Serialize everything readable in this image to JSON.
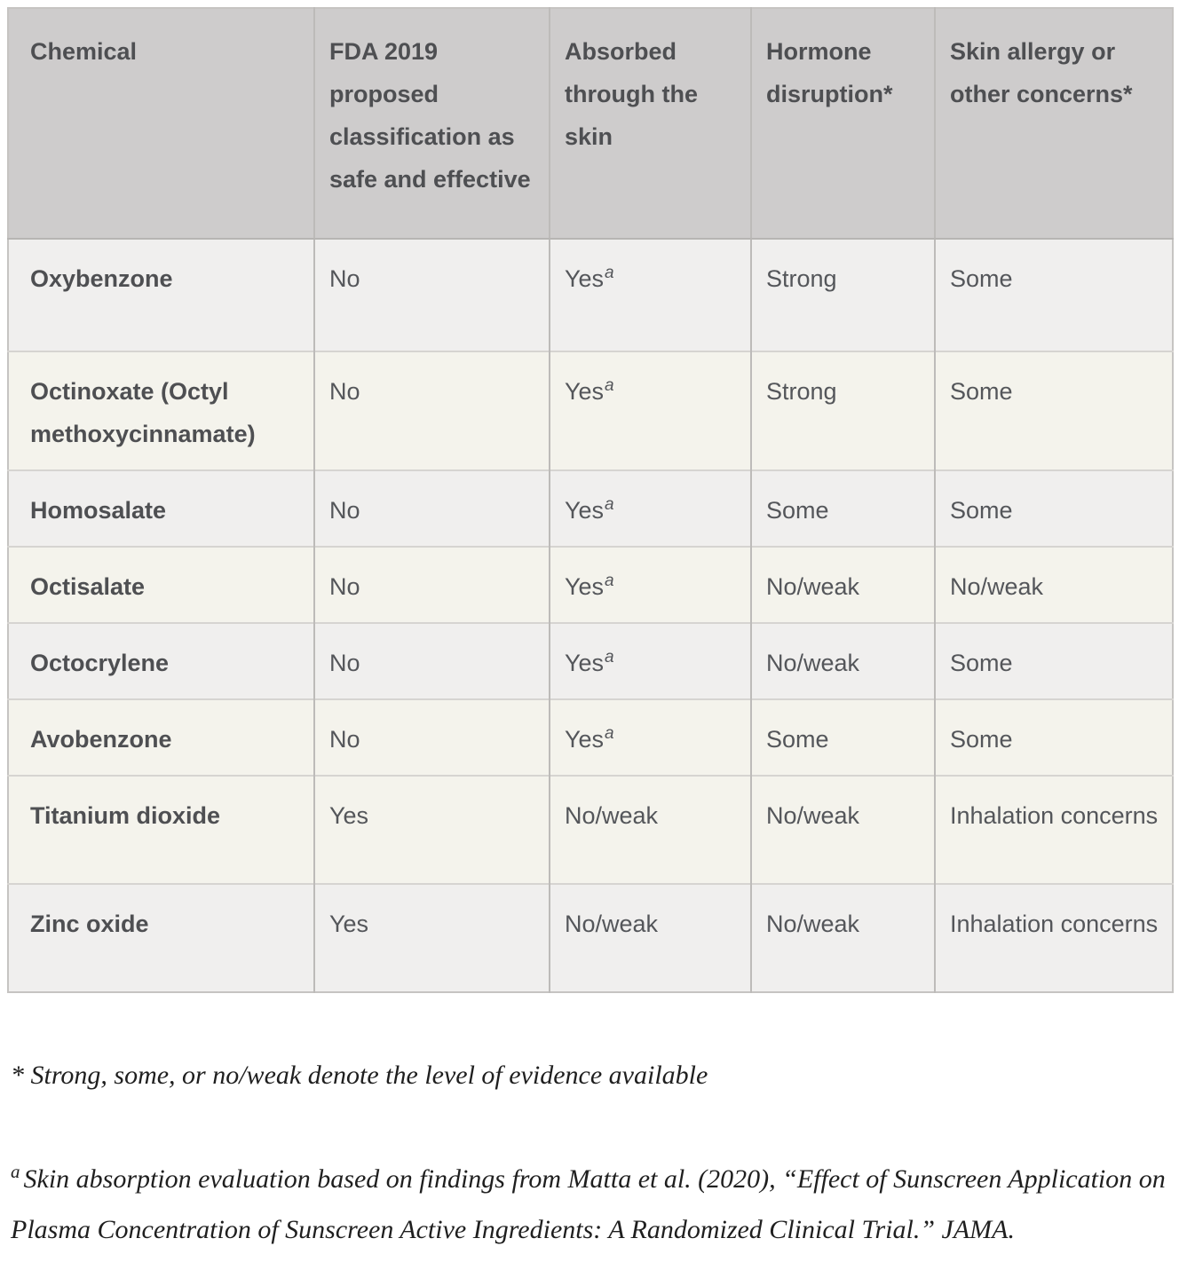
{
  "table": {
    "columns": [
      "Chemical",
      "FDA 2019 proposed classification as safe and effective",
      "Absorbed through the skin",
      "Hormone disruption*",
      "Skin allergy or other concerns*"
    ],
    "rows": [
      {
        "chemical": "Oxybenzone",
        "shade": "gray",
        "cells": [
          {
            "text": "No"
          },
          {
            "text": "Yes",
            "sup": "a"
          },
          {
            "text": "Strong"
          },
          {
            "text": "Some"
          }
        ]
      },
      {
        "chemical": "Octinoxate (Octyl methoxycinnamate)",
        "shade": "ivory",
        "cells": [
          {
            "text": "No"
          },
          {
            "text": "Yes",
            "sup": "a"
          },
          {
            "text": "Strong"
          },
          {
            "text": "Some"
          }
        ]
      },
      {
        "chemical": "Homosalate",
        "shade": "gray",
        "cells": [
          {
            "text": "No"
          },
          {
            "text": "Yes",
            "sup": "a"
          },
          {
            "text": "Some"
          },
          {
            "text": "Some"
          }
        ]
      },
      {
        "chemical": "Octisalate",
        "shade": "ivory",
        "cells": [
          {
            "text": "No"
          },
          {
            "text": "Yes",
            "sup": "a"
          },
          {
            "text": "No/weak"
          },
          {
            "text": "No/weak"
          }
        ]
      },
      {
        "chemical": "Octocrylene",
        "shade": "gray",
        "cells": [
          {
            "text": "No"
          },
          {
            "text": "Yes",
            "sup": "a"
          },
          {
            "text": "No/weak"
          },
          {
            "text": "Some"
          }
        ]
      },
      {
        "chemical": "Avobenzone",
        "shade": "ivory",
        "cells": [
          {
            "text": "No"
          },
          {
            "text": "Yes",
            "sup": "a"
          },
          {
            "text": "Some"
          },
          {
            "text": "Some"
          }
        ]
      },
      {
        "chemical": "Titanium dioxide",
        "shade": "ivory",
        "cells": [
          {
            "text": "Yes"
          },
          {
            "text": "No/weak"
          },
          {
            "text": "No/weak"
          },
          {
            "text": "Inhalation concerns"
          }
        ]
      },
      {
        "chemical": "Zinc oxide",
        "shade": "gray",
        "cells": [
          {
            "text": "Yes"
          },
          {
            "text": "No/weak"
          },
          {
            "text": "No/weak"
          },
          {
            "text": "Inhalation concerns"
          }
        ]
      }
    ]
  },
  "footnotes": {
    "evidence_note": "* Strong, some, or no/weak denote the level of evidence available",
    "absorption_note": {
      "sup": "a",
      "text": "Skin absorption evaluation based on findings from Matta et al. (2020), “Effect of Sunscreen Application on Plasma Concentration of Sunscreen Active Ingredients: A Randomized Clinical Trial.” JAMA."
    }
  },
  "colors": {
    "header_bg": "#cecccc",
    "row_gray": "#f0efee",
    "row_ivory": "#f4f3ec",
    "header_text": "#4e4f52",
    "cell_text": "#54565a",
    "border_vertical": "#bdbbb9",
    "border_horizontal": "#d6d4d1",
    "footnote_text": "#1f1f1f"
  }
}
